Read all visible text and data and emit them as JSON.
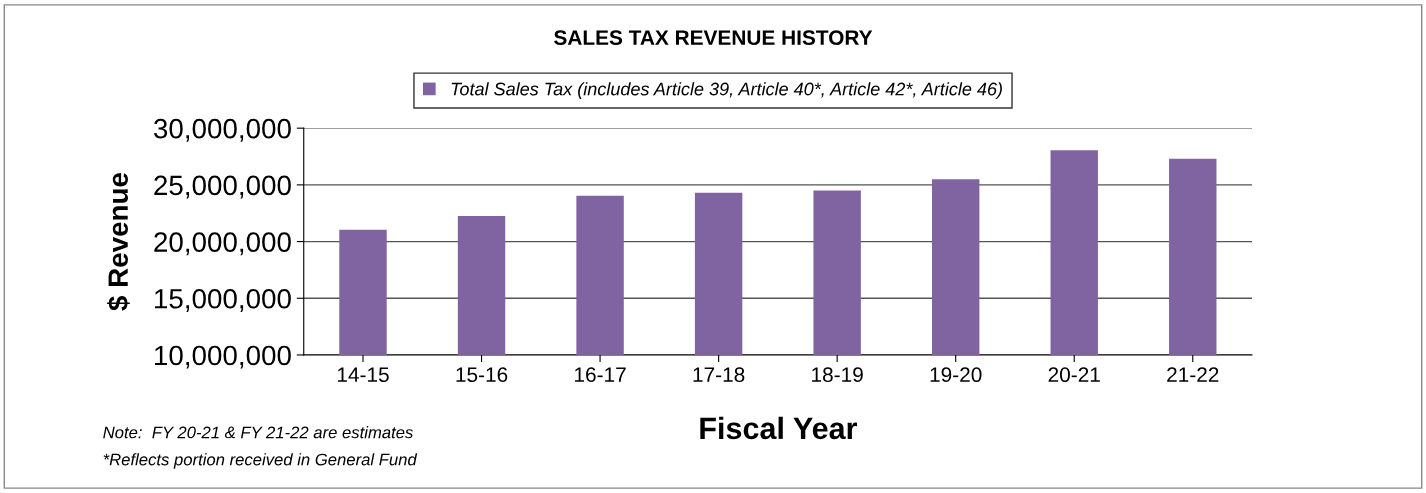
{
  "chart_data": {
    "type": "bar",
    "title": "SALES TAX REVENUE HISTORY",
    "xlabel": "Fiscal Year",
    "ylabel": "$ Revenue",
    "categories": [
      "14-15",
      "15-16",
      "16-17",
      "17-18",
      "18-19",
      "19-20",
      "20-21",
      "21-22"
    ],
    "series": [
      {
        "name": "Total Sales Tax (includes Article 39, Article 40*, Article 42*, Article 46)",
        "color": "#8064a2",
        "values": [
          21050000,
          22250000,
          24050000,
          24300000,
          24500000,
          25500000,
          28050000,
          27300000
        ]
      }
    ],
    "ylim": [
      10000000,
      30000000
    ],
    "yticks": [
      {
        "value": 10000000,
        "label": "10,000,000"
      },
      {
        "value": 15000000,
        "label": "15,000,000"
      },
      {
        "value": 20000000,
        "label": "20,000,000"
      },
      {
        "value": 25000000,
        "label": "25,000,000"
      },
      {
        "value": 30000000,
        "label": "30,000,000"
      }
    ],
    "grid": "y",
    "legend": "top",
    "annotations": [
      "Note:  FY 20-21 & FY 21-22 are estimates",
      "*Reflects portion received in General Fund"
    ]
  }
}
